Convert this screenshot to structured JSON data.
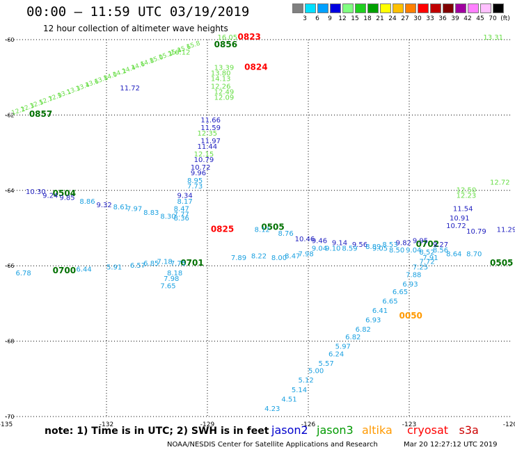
{
  "header": {
    "title": "00:00 – 11:59 UTC 03/19/2019",
    "subtitle": "12 hour collection of altimeter wave heights"
  },
  "legend": {
    "unit": "(ft)",
    "items": [
      {
        "color": "#808080",
        "label": "3"
      },
      {
        "color": "#00e0ff",
        "label": "6"
      },
      {
        "color": "#00a0ff",
        "label": "9"
      },
      {
        "color": "#0000e0",
        "label": "12"
      },
      {
        "color": "#80ff80",
        "label": "15"
      },
      {
        "color": "#20d020",
        "label": "18"
      },
      {
        "color": "#00a000",
        "label": "21"
      },
      {
        "color": "#ffff00",
        "label": "24"
      },
      {
        "color": "#ffc000",
        "label": "27"
      },
      {
        "color": "#ff8000",
        "label": "30"
      },
      {
        "color": "#ff0000",
        "label": "33"
      },
      {
        "color": "#c00000",
        "label": "36"
      },
      {
        "color": "#800000",
        "label": "39"
      },
      {
        "color": "#a000a0",
        "label": "42"
      },
      {
        "color": "#ff80ff",
        "label": "45"
      },
      {
        "color": "#ffc0ff",
        "label": "70"
      },
      {
        "color": "#000000",
        "label": ""
      }
    ]
  },
  "axes": {
    "lon_ticks": [
      "-135",
      "-132",
      "-129",
      "-126",
      "-123",
      "-120"
    ],
    "lat_ticks": [
      "-60",
      "-62",
      "-64",
      "-66",
      "-68",
      "-70"
    ]
  },
  "map_labels": [
    {
      "t": "0823",
      "lon": -128.1,
      "lat": -60.0,
      "c": "#ff0000",
      "s": 12
    },
    {
      "t": "0824",
      "lon": -127.9,
      "lat": -60.8,
      "c": "#ff0000",
      "s": 12
    },
    {
      "t": "0825",
      "lon": -128.9,
      "lat": -65.1,
      "c": "#ff0000",
      "s": 12
    },
    {
      "t": "0856",
      "lon": -128.8,
      "lat": -60.2,
      "c": "#007000",
      "s": 12
    },
    {
      "t": "0857",
      "lon": -134.3,
      "lat": -62.05,
      "c": "#007000",
      "s": 12
    },
    {
      "t": "0504",
      "lon": -133.6,
      "lat": -64.15,
      "c": "#007000",
      "s": 12
    },
    {
      "t": "0505",
      "lon": -127.4,
      "lat": -65.05,
      "c": "#007000",
      "s": 12
    },
    {
      "t": "0505",
      "lon": -120.6,
      "lat": -66.0,
      "c": "#007000",
      "s": 12
    },
    {
      "t": "0700",
      "lon": -133.6,
      "lat": -66.2,
      "c": "#007000",
      "s": 12
    },
    {
      "t": "0701",
      "lon": -129.8,
      "lat": -66.0,
      "c": "#007000",
      "s": 12
    },
    {
      "t": "0702",
      "lon": -122.8,
      "lat": -65.5,
      "c": "#007000",
      "s": 12
    },
    {
      "t": "0050",
      "lon": -123.3,
      "lat": -67.4,
      "c": "#ff9900",
      "s": 12
    },
    {
      "t": "16.05",
      "lon": -128.7,
      "lat": -60.0,
      "c": "#66dd44",
      "s": 10
    },
    {
      "t": "16.12",
      "lon": -130.1,
      "lat": -60.4,
      "c": "#66dd44",
      "s": 10
    },
    {
      "t": "13.39",
      "lon": -128.8,
      "lat": -60.8,
      "c": "#66dd44",
      "s": 10
    },
    {
      "t": "13.80",
      "lon": -128.9,
      "lat": -60.95,
      "c": "#66dd44",
      "s": 10
    },
    {
      "t": "14.13",
      "lon": -128.9,
      "lat": -61.1,
      "c": "#66dd44",
      "s": 10
    },
    {
      "t": "12.26",
      "lon": -128.9,
      "lat": -61.3,
      "c": "#66dd44",
      "s": 10
    },
    {
      "t": "12.49",
      "lon": -128.8,
      "lat": -61.45,
      "c": "#66dd44",
      "s": 10
    },
    {
      "t": "12.09",
      "lon": -128.8,
      "lat": -61.6,
      "c": "#66dd44",
      "s": 10
    },
    {
      "t": "11.72",
      "lon": -131.6,
      "lat": -61.35,
      "c": "#2020c0",
      "s": 10
    },
    {
      "t": "11.66",
      "lon": -129.2,
      "lat": -62.2,
      "c": "#2020c0",
      "s": 10
    },
    {
      "t": "11.59",
      "lon": -129.2,
      "lat": -62.4,
      "c": "#2020c0",
      "s": 10
    },
    {
      "t": "12.35",
      "lon": -129.3,
      "lat": -62.55,
      "c": "#66dd44",
      "s": 10
    },
    {
      "t": "11.97",
      "lon": -129.2,
      "lat": -62.75,
      "c": "#2020c0",
      "s": 10
    },
    {
      "t": "11.44",
      "lon": -129.3,
      "lat": -62.9,
      "c": "#2020c0",
      "s": 10
    },
    {
      "t": "12.15",
      "lon": -129.4,
      "lat": -63.1,
      "c": "#66dd44",
      "s": 10
    },
    {
      "t": "10.79",
      "lon": -129.4,
      "lat": -63.25,
      "c": "#2020c0",
      "s": 10
    },
    {
      "t": "10.72",
      "lon": -129.5,
      "lat": -63.45,
      "c": "#2020c0",
      "s": 10
    },
    {
      "t": "9.96",
      "lon": -129.5,
      "lat": -63.6,
      "c": "#2020c0",
      "s": 10
    },
    {
      "t": "8.95",
      "lon": -129.6,
      "lat": -63.8,
      "c": "#1aa0e0",
      "s": 10
    },
    {
      "t": "7.73",
      "lon": -129.6,
      "lat": -63.95,
      "c": "#1aa0e0",
      "s": 10
    },
    {
      "t": "9.34",
      "lon": -129.9,
      "lat": -64.2,
      "c": "#2020c0",
      "s": 10
    },
    {
      "t": "8.17",
      "lon": -129.9,
      "lat": -64.35,
      "c": "#1aa0e0",
      "s": 10
    },
    {
      "t": "8.47",
      "lon": -130.0,
      "lat": -64.55,
      "c": "#1aa0e0",
      "s": 10
    },
    {
      "t": "7.77",
      "lon": -130.0,
      "lat": -64.7,
      "c": "#1aa0e0",
      "s": 10
    },
    {
      "t": "7.75",
      "lon": -130.1,
      "lat": -66.0,
      "c": "#1aa0e0",
      "s": 10
    },
    {
      "t": "8.18",
      "lon": -130.2,
      "lat": -66.25,
      "c": "#1aa0e0",
      "s": 10
    },
    {
      "t": "7.98",
      "lon": -130.3,
      "lat": -66.4,
      "c": "#1aa0e0",
      "s": 10
    },
    {
      "t": "7.65",
      "lon": -130.4,
      "lat": -66.6,
      "c": "#1aa0e0",
      "s": 10
    },
    {
      "t": "10.30",
      "lon": -134.4,
      "lat": -64.1,
      "c": "#2020c0",
      "s": 10
    },
    {
      "t": "9.24",
      "lon": -133.9,
      "lat": -64.2,
      "c": "#2020c0",
      "s": 10
    },
    {
      "t": "9.85",
      "lon": -133.4,
      "lat": -64.25,
      "c": "#2020c0",
      "s": 10
    },
    {
      "t": "8.86",
      "lon": -132.8,
      "lat": -64.35,
      "c": "#1aa0e0",
      "s": 10
    },
    {
      "t": "9.32",
      "lon": -132.3,
      "lat": -64.45,
      "c": "#2020c0",
      "s": 10
    },
    {
      "t": "8.61",
      "lon": -131.8,
      "lat": -64.5,
      "c": "#1aa0e0",
      "s": 10
    },
    {
      "t": "7.97",
      "lon": -131.4,
      "lat": -64.55,
      "c": "#1aa0e0",
      "s": 10
    },
    {
      "t": "8.83",
      "lon": -130.9,
      "lat": -64.65,
      "c": "#1aa0e0",
      "s": 10
    },
    {
      "t": "8.30",
      "lon": -130.4,
      "lat": -64.75,
      "c": "#1aa0e0",
      "s": 10
    },
    {
      "t": "8.36",
      "lon": -130.0,
      "lat": -64.8,
      "c": "#1aa0e0",
      "s": 10
    },
    {
      "t": "8.12",
      "lon": -127.6,
      "lat": -65.1,
      "c": "#1aa0e0",
      "s": 10
    },
    {
      "t": "8.76",
      "lon": -126.9,
      "lat": -65.2,
      "c": "#1aa0e0",
      "s": 10
    },
    {
      "t": "10.46",
      "lon": -126.4,
      "lat": -65.35,
      "c": "#2020c0",
      "s": 10
    },
    {
      "t": "9.46",
      "lon": -125.9,
      "lat": -65.4,
      "c": "#2020c0",
      "s": 10
    },
    {
      "t": "9.14",
      "lon": -125.3,
      "lat": -65.45,
      "c": "#2020c0",
      "s": 10
    },
    {
      "t": "9.56",
      "lon": -124.7,
      "lat": -65.5,
      "c": "#2020c0",
      "s": 10
    },
    {
      "t": "8.89",
      "lon": -124.3,
      "lat": -65.55,
      "c": "#1aa0e0",
      "s": 10
    },
    {
      "t": "8.53",
      "lon": -123.8,
      "lat": -65.5,
      "c": "#1aa0e0",
      "s": 10
    },
    {
      "t": "9.82",
      "lon": -123.4,
      "lat": -65.45,
      "c": "#2020c0",
      "s": 10
    },
    {
      "t": "9.95",
      "lon": -122.9,
      "lat": -65.4,
      "c": "#2020c0",
      "s": 10
    },
    {
      "t": "9.27",
      "lon": -122.3,
      "lat": -65.5,
      "c": "#2020c0",
      "s": 10
    },
    {
      "t": "11.54",
      "lon": -121.7,
      "lat": -64.55,
      "c": "#2020c0",
      "s": 10
    },
    {
      "t": "10.91",
      "lon": -121.8,
      "lat": -64.8,
      "c": "#2020c0",
      "s": 10
    },
    {
      "t": "10.72",
      "lon": -121.9,
      "lat": -65.0,
      "c": "#2020c0",
      "s": 10
    },
    {
      "t": "10.79",
      "lon": -121.3,
      "lat": -65.15,
      "c": "#2020c0",
      "s": 10
    },
    {
      "t": "11.29",
      "lon": -120.4,
      "lat": -65.1,
      "c": "#2020c0",
      "s": 10
    },
    {
      "t": "12.50",
      "lon": -121.6,
      "lat": -64.05,
      "c": "#66dd44",
      "s": 10
    },
    {
      "t": "12.23",
      "lon": -121.6,
      "lat": -64.2,
      "c": "#66dd44",
      "s": 10
    },
    {
      "t": "12.72",
      "lon": -120.6,
      "lat": -63.85,
      "c": "#66dd44",
      "s": 10
    },
    {
      "t": "13.31",
      "lon": -120.8,
      "lat": -60.0,
      "c": "#66dd44",
      "s": 10
    },
    {
      "t": "9.04",
      "lon": -125.9,
      "lat": -65.6,
      "c": "#1aa0e0",
      "s": 10
    },
    {
      "t": "9.10",
      "lon": -125.5,
      "lat": -65.6,
      "c": "#1aa0e0",
      "s": 10
    },
    {
      "t": "8.59",
      "lon": -125.0,
      "lat": -65.6,
      "c": "#1aa0e0",
      "s": 10
    },
    {
      "t": "9.05",
      "lon": -124.1,
      "lat": -65.6,
      "c": "#1aa0e0",
      "s": 10
    },
    {
      "t": "8.50",
      "lon": -123.6,
      "lat": -65.65,
      "c": "#1aa0e0",
      "s": 10
    },
    {
      "t": "9.04",
      "lon": -123.1,
      "lat": -65.65,
      "c": "#1aa0e0",
      "s": 10
    },
    {
      "t": "8.52",
      "lon": -122.7,
      "lat": -65.7,
      "c": "#1aa0e0",
      "s": 10
    },
    {
      "t": "8.56",
      "lon": -122.3,
      "lat": -65.65,
      "c": "#1aa0e0",
      "s": 10
    },
    {
      "t": "8.64",
      "lon": -121.9,
      "lat": -65.75,
      "c": "#1aa0e0",
      "s": 10
    },
    {
      "t": "8.70",
      "lon": -121.3,
      "lat": -65.75,
      "c": "#1aa0e0",
      "s": 10
    },
    {
      "t": "7.91",
      "lon": -122.6,
      "lat": -65.85,
      "c": "#1aa0e0",
      "s": 10
    },
    {
      "t": "8.22",
      "lon": -127.7,
      "lat": -65.8,
      "c": "#1aa0e0",
      "s": 10
    },
    {
      "t": "8.00",
      "lon": -127.1,
      "lat": -65.85,
      "c": "#1aa0e0",
      "s": 10
    },
    {
      "t": "8.47",
      "lon": -126.7,
      "lat": -65.8,
      "c": "#1aa0e0",
      "s": 10
    },
    {
      "t": "7.98",
      "lon": -126.3,
      "lat": -65.75,
      "c": "#1aa0e0",
      "s": 10
    },
    {
      "t": "7.89",
      "lon": -128.3,
      "lat": -65.85,
      "c": "#1aa0e0",
      "s": 10
    },
    {
      "t": "6.78",
      "lon": -134.7,
      "lat": -66.25,
      "c": "#1aa0e0",
      "s": 10
    },
    {
      "t": "6.44",
      "lon": -132.9,
      "lat": -66.15,
      "c": "#1aa0e0",
      "s": 10
    },
    {
      "t": "5.91",
      "lon": -132.0,
      "lat": -66.1,
      "c": "#1aa0e0",
      "s": 10
    },
    {
      "t": "6.57",
      "lon": -131.3,
      "lat": -66.05,
      "c": "#1aa0e0",
      "s": 10
    },
    {
      "t": "6.85",
      "lon": -130.9,
      "lat": -66.0,
      "c": "#1aa0e0",
      "s": 10
    },
    {
      "t": "7.18",
      "lon": -130.5,
      "lat": -65.95,
      "c": "#1aa0e0",
      "s": 10
    },
    {
      "t": "7.72",
      "lon": -122.7,
      "lat": -65.95,
      "c": "#1aa0e0",
      "s": 10
    },
    {
      "t": "7.25",
      "lon": -122.9,
      "lat": -66.1,
      "c": "#1aa0e0",
      "s": 10
    },
    {
      "t": "7.88",
      "lon": -123.1,
      "lat": -66.3,
      "c": "#1aa0e0",
      "s": 10
    },
    {
      "t": "6.93",
      "lon": -123.2,
      "lat": -66.55,
      "c": "#1aa0e0",
      "s": 10
    },
    {
      "t": "6.65",
      "lon": -123.5,
      "lat": -66.75,
      "c": "#1aa0e0",
      "s": 10
    },
    {
      "t": "6.65",
      "lon": -123.8,
      "lat": -67.0,
      "c": "#1aa0e0",
      "s": 10
    },
    {
      "t": "6.41",
      "lon": -124.1,
      "lat": -67.25,
      "c": "#1aa0e0",
      "s": 10
    },
    {
      "t": "6.93",
      "lon": -124.3,
      "lat": -67.5,
      "c": "#1aa0e0",
      "s": 10
    },
    {
      "t": "6.82",
      "lon": -124.6,
      "lat": -67.75,
      "c": "#1aa0e0",
      "s": 10
    },
    {
      "t": "6.82",
      "lon": -124.9,
      "lat": -67.95,
      "c": "#1aa0e0",
      "s": 10
    },
    {
      "t": "5.97",
      "lon": -125.2,
      "lat": -68.2,
      "c": "#1aa0e0",
      "s": 10
    },
    {
      "t": "6.24",
      "lon": -125.4,
      "lat": -68.4,
      "c": "#1aa0e0",
      "s": 10
    },
    {
      "t": "5.57",
      "lon": -125.7,
      "lat": -68.65,
      "c": "#1aa0e0",
      "s": 10
    },
    {
      "t": "5.00",
      "lon": -126.0,
      "lat": -68.85,
      "c": "#1aa0e0",
      "s": 10
    },
    {
      "t": "5.12",
      "lon": -126.3,
      "lat": -69.1,
      "c": "#1aa0e0",
      "s": 10
    },
    {
      "t": "5.14",
      "lon": -126.5,
      "lat": -69.35,
      "c": "#1aa0e0",
      "s": 10
    },
    {
      "t": "4.51",
      "lon": -126.8,
      "lat": -69.6,
      "c": "#1aa0e0",
      "s": 10
    },
    {
      "t": "4.23",
      "lon": -127.3,
      "lat": -69.85,
      "c": "#1aa0e0",
      "s": 10
    }
  ],
  "green_track_labels": [
    "12.2",
    "12.3",
    "12.5",
    "12.7",
    "12.9",
    "13.1",
    "13.3",
    "13.4",
    "13.6",
    "13.8",
    "14.0",
    "14.2",
    "14.4",
    "14.6",
    "14.8",
    "15.0",
    "15.2",
    "15.4",
    "15.6",
    "15.8"
  ],
  "note": "note: 1) Time is in UTC; 2) SWH is in feet",
  "satellites": [
    {
      "name": "jason2",
      "color": "#0000cc"
    },
    {
      "name": "jason3",
      "color": "#009900"
    },
    {
      "name": "altika",
      "color": "#ff9900"
    },
    {
      "name": "cryosat",
      "color": "#ff0000"
    },
    {
      "name": "s3a",
      "color": "#cc0000"
    }
  ],
  "footer": {
    "left": "NOAA/NESDIS Center for Satellite Applications and Research",
    "right": "Mar 20 12:27:12 UTC 2019"
  }
}
